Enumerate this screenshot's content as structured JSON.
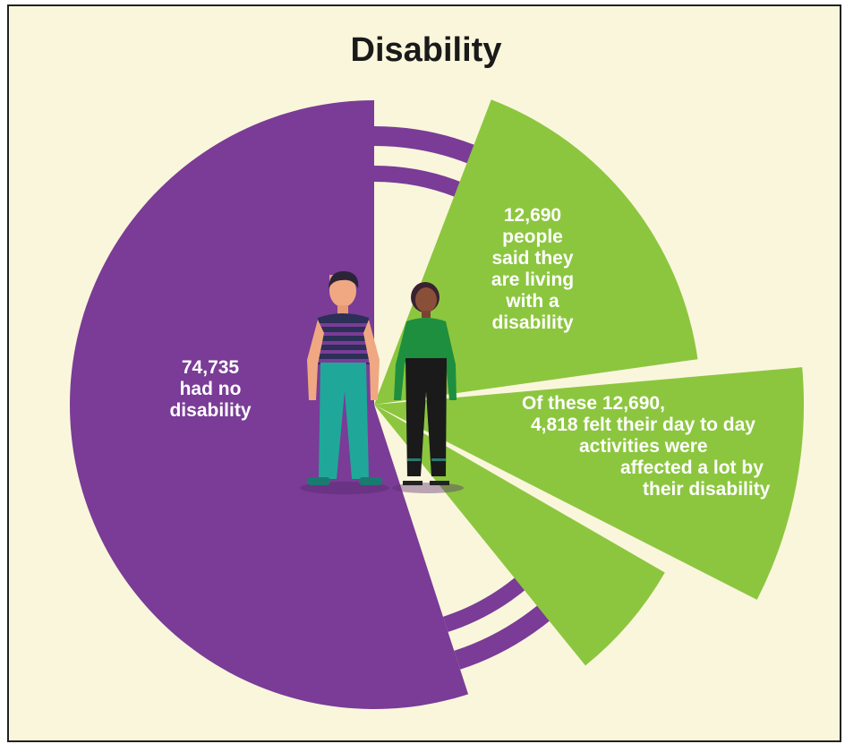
{
  "title": "Disability",
  "colors": {
    "background": "#faf6dc",
    "no_disability": "#7a3c96",
    "disability": "#8cc63f",
    "text_on_segment": "#ffffff"
  },
  "icons": [
    "man-figure-icon",
    "woman-figure-icon"
  ],
  "chart_data": {
    "type": "pie",
    "title": "Disability",
    "slices": [
      {
        "label": "had no disability",
        "value": 74735,
        "color": "#7a3c96"
      },
      {
        "label": "people said they are living with a disability",
        "value": 12690,
        "color": "#8cc63f"
      }
    ],
    "sub_slices": [
      {
        "parent": "people said they are living with a disability",
        "label": "felt their day to day activities were affected a lot by their disability",
        "value": 4818,
        "color": "#8cc63f"
      }
    ]
  },
  "labels": {
    "no_disability": {
      "value": "74,735",
      "lines": [
        "had no",
        "disability"
      ]
    },
    "disability": {
      "value": "12,690",
      "lines": [
        "people",
        "said they",
        "are living",
        "with a",
        "disability"
      ]
    },
    "affected": {
      "lines": [
        "Of these 12,690,",
        "4,818 felt their day to day",
        "activities were",
        "affected a lot by",
        "their disability"
      ]
    }
  }
}
